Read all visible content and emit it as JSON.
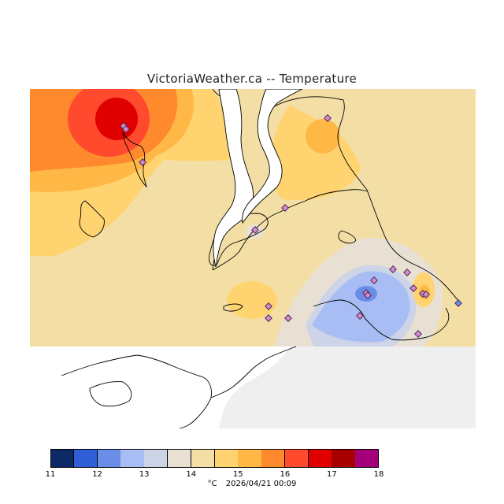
{
  "title": "VictoriaWeather.ca -- Temperature",
  "legend": {
    "colors": [
      "#0c2a66",
      "#2f5ed6",
      "#6a8ee8",
      "#a9bdf5",
      "#cdd4e8",
      "#e8e0d2",
      "#f3dfa6",
      "#ffd470",
      "#ffb845",
      "#ff8a2e",
      "#ff4a2e",
      "#e00000",
      "#a80000",
      "#a3007a"
    ],
    "ticks": [
      "11",
      "12",
      "13",
      "14",
      "15",
      "16",
      "17",
      "18"
    ],
    "unit": "°C",
    "timestamp": "2026/04/21 00:09"
  }
}
